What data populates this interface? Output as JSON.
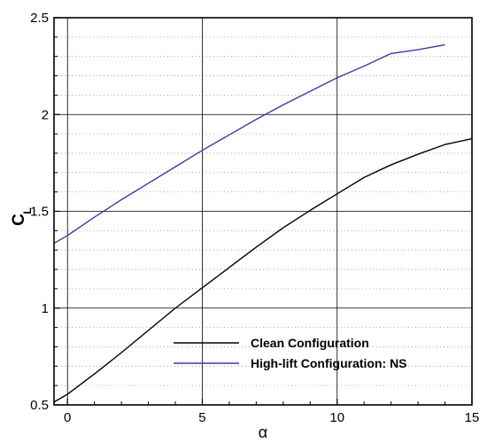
{
  "chart_data": {
    "type": "line",
    "xlabel": "α",
    "ylabel": "C",
    "ylabel_subscript": "L",
    "xlim": [
      -0.5,
      15
    ],
    "ylim": [
      0.5,
      2.5
    ],
    "x_major_ticks": [
      0,
      5,
      10,
      15
    ],
    "x_tick_labels": [
      "0",
      "5",
      "10",
      "15"
    ],
    "y_major_ticks": [
      0.5,
      1,
      1.5,
      2,
      2.5
    ],
    "y_tick_labels": [
      "0.5",
      "1",
      "1.5",
      "2",
      "2.5"
    ],
    "y_minor_gridlines": "dotted, every 0.1",
    "grid": true,
    "legend_position": "bottom-center",
    "series": [
      {
        "name": "Clean Configuration",
        "color": "#000000",
        "x": [
          -0.5,
          0,
          1,
          2,
          3,
          4,
          5,
          6,
          7,
          8,
          9,
          10,
          11,
          12,
          13,
          14,
          15
        ],
        "y": [
          0.515,
          0.555,
          0.66,
          0.77,
          0.885,
          1.0,
          1.105,
          1.21,
          1.315,
          1.415,
          1.505,
          1.59,
          1.675,
          1.74,
          1.795,
          1.845,
          1.875
        ]
      },
      {
        "name": "High-lift Configuration: NS",
        "color": "#3a3aa8",
        "x": [
          -0.5,
          0,
          1,
          2,
          3,
          4,
          5,
          6,
          7,
          8,
          9,
          10,
          11,
          12,
          13,
          14
        ],
        "y": [
          1.335,
          1.375,
          1.47,
          1.56,
          1.645,
          1.73,
          1.815,
          1.895,
          1.975,
          2.05,
          2.12,
          2.19,
          2.25,
          2.315,
          2.335,
          2.36
        ]
      }
    ]
  }
}
